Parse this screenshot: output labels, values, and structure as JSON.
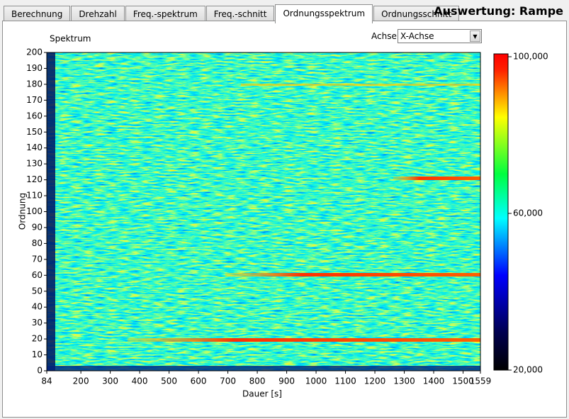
{
  "tabs": [
    "Berechnung",
    "Drehzahl",
    "Freq.-spektrum",
    "Freq.-schnitt",
    "Ordnungsspektrum",
    "Ordnungsschnitt"
  ],
  "active_tab": 4,
  "header_title": "Auswertung: Rampe",
  "axis_control": {
    "label": "Achse:",
    "value": "X-Achse"
  },
  "chart_data": {
    "type": "heatmap",
    "title": "Spektrum",
    "xlabel": "Dauer [s]",
    "ylabel": "Ordnung",
    "xlim": [
      84,
      1559
    ],
    "xticks": [
      84,
      200,
      300,
      400,
      500,
      600,
      700,
      800,
      900,
      1000,
      1100,
      1200,
      1300,
      1400,
      1500,
      1559
    ],
    "ylim": [
      0,
      200
    ],
    "yticks": [
      0,
      10,
      20,
      30,
      40,
      50,
      60,
      70,
      80,
      90,
      100,
      110,
      120,
      130,
      140,
      150,
      160,
      170,
      180,
      190,
      200
    ],
    "colorbar": {
      "lim": [
        20000,
        100000
      ],
      "ticks": [
        {
          "value": 100000,
          "label": "100,000"
        },
        {
          "value": 60000,
          "label": "60,000"
        },
        {
          "value": 20000,
          "label": "20,000"
        }
      ]
    }
  }
}
